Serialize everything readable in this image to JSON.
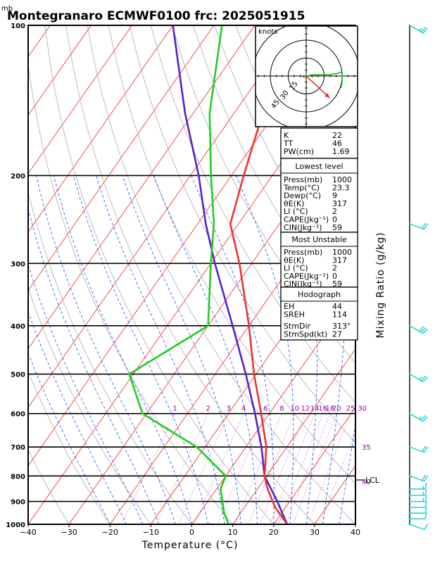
{
  "chart_data": {
    "type": "skew-t",
    "title": "Montegranaro ECMWF0100  frc: 2025051915",
    "pressure_unit": "mb",
    "xlabel": "Temperature (°C)",
    "ylabel_right": "Mixing Ratio  (g/kg)",
    "x_ticks": [
      -40,
      -30,
      -20,
      -10,
      0,
      10,
      20,
      30,
      40
    ],
    "p_ticks": [
      100,
      200,
      300,
      400,
      500,
      600,
      700,
      800,
      900,
      1000
    ],
    "xlim": [
      -40,
      40
    ],
    "plim": [
      1000,
      100
    ],
    "mixing_ratio_labels": [
      "1",
      "2",
      "3",
      "4",
      "6",
      "8",
      "10",
      "12",
      "14",
      "16",
      "18",
      "20",
      "25",
      "30"
    ],
    "mixing_ratio_values": [
      1,
      2,
      3,
      4,
      6,
      8,
      10,
      12,
      14,
      16,
      18,
      20,
      25,
      30
    ],
    "side_labels": [
      "35",
      "40"
    ],
    "lcl_label": "LCL",
    "lcl_pressure": 800,
    "temperature": {
      "color": "#ee3333",
      "p": [
        1000,
        925,
        850,
        800,
        700,
        600,
        500,
        400,
        300,
        250,
        200,
        150,
        100
      ],
      "t": [
        23.3,
        17.5,
        12.5,
        9.5,
        5,
        -2,
        -10.5,
        -20,
        -33,
        -42,
        -47,
        -53,
        -59
      ]
    },
    "dewpoint": {
      "color": "#22cc22",
      "p": [
        1000,
        950,
        850,
        800,
        700,
        600,
        500,
        400,
        300,
        250,
        200,
        150,
        100
      ],
      "t": [
        9,
        6,
        1,
        0,
        -12,
        -31,
        -41,
        -30,
        -40,
        -46,
        -55,
        -66,
        -78
      ]
    },
    "parcel": {
      "color": "#5522cc",
      "p": [
        1000,
        900,
        800,
        700,
        600,
        500,
        400,
        300,
        250,
        200,
        150,
        100
      ],
      "t": [
        23.3,
        17,
        9.5,
        3.8,
        -3.5,
        -12.5,
        -24,
        -39,
        -48,
        -58,
        -72,
        -90
      ]
    },
    "wind_barbs": {
      "color": "#00cccc",
      "p": [
        1000,
        975,
        950,
        925,
        900,
        875,
        850,
        800,
        700,
        600,
        500,
        400,
        250,
        100
      ],
      "spd_kt": [
        10,
        10,
        10,
        10,
        15,
        15,
        15,
        20,
        20,
        25,
        25,
        30,
        20,
        25
      ],
      "dir_deg": [
        250,
        270,
        270,
        270,
        270,
        270,
        270,
        250,
        250,
        240,
        240,
        240,
        250,
        240
      ]
    },
    "indices": {
      "rows": [
        {
          "label": "K",
          "value": "22"
        },
        {
          "label": "TT",
          "value": "46"
        },
        {
          "label": "PW(cm)",
          "value": "1.69"
        }
      ]
    },
    "lowest_level": {
      "header": "Lowest level",
      "rows": [
        {
          "label": "Press(mb)",
          "value": "1000"
        },
        {
          "label": "Temp(°C)",
          "value": "23.3"
        },
        {
          "label": "Dewp(°C)",
          "value": "9"
        },
        {
          "label": "θE(K)",
          "value": "317"
        },
        {
          "label": "LI (°C)",
          "value": "2"
        },
        {
          "label": "CAPE(Jkg⁻¹)",
          "value": "0"
        },
        {
          "label": "CIN(Jkg⁻¹)",
          "value": "59"
        }
      ]
    },
    "most_unstable": {
      "header": "Most Unstable",
      "rows": [
        {
          "label": "Press(mb)",
          "value": "1000"
        },
        {
          "label": "θE(K)",
          "value": "317"
        },
        {
          "label": "LI (°C)",
          "value": "2"
        },
        {
          "label": "CAPE(Jkg⁻¹)",
          "value": "0"
        },
        {
          "label": "CIN(Jkg⁻¹)",
          "value": "59"
        }
      ]
    },
    "hodograph": {
      "header": "Hodograph",
      "rows": [
        {
          "label": "EH",
          "value": "44"
        },
        {
          "label": "SREH",
          "value": "114"
        },
        {
          "label": "StmDir",
          "value": "313°"
        },
        {
          "label": "StmSpd(kt)",
          "value": "27"
        }
      ]
    },
    "hodo_plot": {
      "units": "knots",
      "ring_labels": [
        "15",
        "30",
        "45"
      ],
      "ring_kt": [
        15,
        30,
        45
      ],
      "trace_color": "#22aa22",
      "storm_vector_color": "#ee3333",
      "storm_dir_deg": 313,
      "storm_spd_kt": 27,
      "trace_u": [
        -3,
        5,
        10,
        15,
        20,
        24,
        26,
        28,
        30,
        30,
        29
      ],
      "trace_v": [
        -1,
        1,
        1,
        1,
        1,
        2,
        2,
        3,
        3,
        -5,
        -10
      ]
    }
  }
}
